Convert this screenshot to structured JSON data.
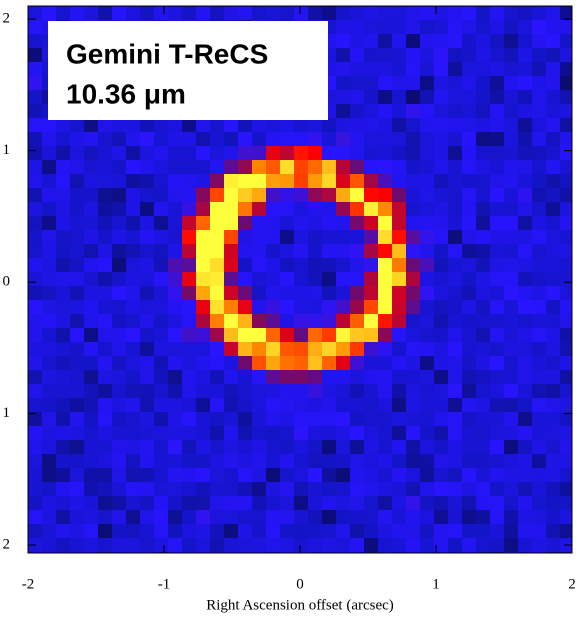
{
  "chart_data": {
    "type": "image",
    "annotation": [
      "Gemini T-ReCS",
      "10.36 μm"
    ],
    "xlabel": "Right Ascension offset (arcsec)",
    "xlim": [
      -2,
      2
    ],
    "xticks": [
      -2,
      -1,
      0,
      1,
      2
    ],
    "ylim": [
      -2.06,
      2.1
    ],
    "yticks": [
      {
        "value": -2,
        "label": "2"
      },
      {
        "value": -1,
        "label": "1"
      },
      0,
      1,
      2
    ]
  }
}
